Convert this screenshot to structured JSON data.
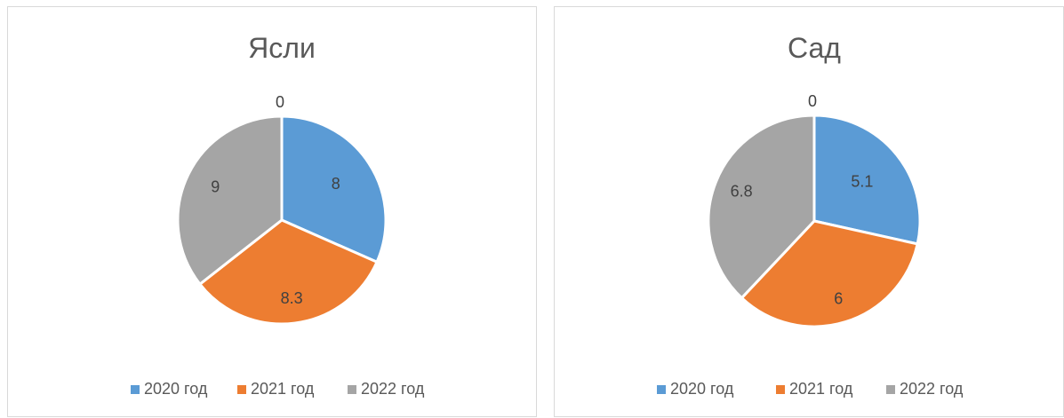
{
  "chart_data": [
    {
      "type": "pie",
      "title": "Ясли",
      "categories": [
        "2020 год",
        "2021 год",
        "2022 год"
      ],
      "values": [
        8,
        8.3,
        9
      ],
      "colors": [
        "#5b9bd5",
        "#ed7d31",
        "#a5a5a5"
      ],
      "labels": [
        "8",
        "8.3",
        "9"
      ],
      "top_label": "0",
      "legend_position": "bottom"
    },
    {
      "type": "pie",
      "title": "Сад",
      "categories": [
        "2020 год",
        "2021 год",
        "2022 год"
      ],
      "values": [
        5.1,
        6,
        6.8
      ],
      "colors": [
        "#5b9bd5",
        "#ed7d31",
        "#a5a5a5"
      ],
      "labels": [
        "5.1",
        "6",
        "6.8"
      ],
      "top_label": "0",
      "legend_position": "bottom"
    }
  ]
}
